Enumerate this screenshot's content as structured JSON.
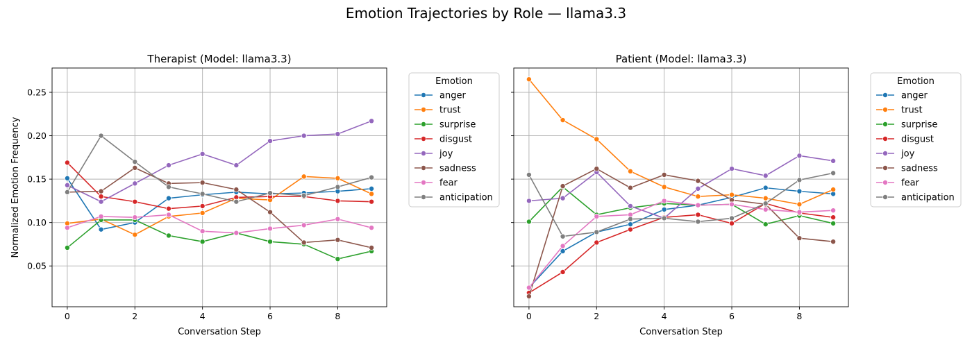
{
  "figure": {
    "title": "Emotion Trajectories by Role — llama3.3"
  },
  "colors": {
    "anger": "#1f77b4",
    "trust": "#ff7f0e",
    "surprise": "#2ca02c",
    "disgust": "#d62728",
    "joy": "#9467bd",
    "sadness": "#8c564b",
    "fear": "#e377c2",
    "anticipation": "#7f7f7f"
  },
  "chart_data": [
    {
      "type": "line",
      "title": "Therapist (Model: llama3.3)",
      "xlabel": "Conversation Step",
      "ylabel": "Normalized Emotion Frequency",
      "x": [
        0,
        1,
        2,
        3,
        4,
        5,
        6,
        7,
        8,
        9
      ],
      "xticks": [
        0,
        2,
        4,
        6,
        8
      ],
      "xlim": [
        -0.45,
        9.45
      ],
      "ylim": [
        0.003,
        0.278
      ],
      "yticks": [
        0.05,
        0.1,
        0.15,
        0.2,
        0.25
      ],
      "grid": true,
      "legend": {
        "title": "Emotion",
        "placement": "outside-right"
      },
      "series": [
        {
          "name": "anger",
          "values": [
            0.151,
            0.092,
            0.1,
            0.128,
            0.132,
            0.135,
            0.133,
            0.134,
            0.136,
            0.139
          ]
        },
        {
          "name": "trust",
          "values": [
            0.099,
            0.104,
            0.086,
            0.107,
            0.111,
            0.128,
            0.126,
            0.153,
            0.151,
            0.133
          ]
        },
        {
          "name": "surprise",
          "values": [
            0.071,
            0.103,
            0.103,
            0.085,
            0.078,
            0.088,
            0.078,
            0.075,
            0.058,
            0.067
          ]
        },
        {
          "name": "disgust",
          "values": [
            0.169,
            0.13,
            0.124,
            0.116,
            0.119,
            0.129,
            0.13,
            0.13,
            0.125,
            0.124
          ]
        },
        {
          "name": "joy",
          "values": [
            0.143,
            0.124,
            0.145,
            0.166,
            0.179,
            0.166,
            0.194,
            0.2,
            0.202,
            0.217
          ]
        },
        {
          "name": "sadness",
          "values": [
            0.135,
            0.136,
            0.163,
            0.145,
            0.146,
            0.138,
            0.112,
            0.077,
            0.08,
            0.071
          ]
        },
        {
          "name": "fear",
          "values": [
            0.094,
            0.107,
            0.106,
            0.109,
            0.09,
            0.088,
            0.093,
            0.097,
            0.104,
            0.094
          ]
        },
        {
          "name": "anticipation",
          "values": [
            0.135,
            0.2,
            0.17,
            0.141,
            0.133,
            0.124,
            0.134,
            0.131,
            0.141,
            0.152
          ]
        }
      ]
    },
    {
      "type": "line",
      "title": "Patient (Model: llama3.3)",
      "xlabel": "Conversation Step",
      "ylabel": "",
      "x": [
        0,
        1,
        2,
        3,
        4,
        5,
        6,
        7,
        8,
        9
      ],
      "xticks": [
        0,
        2,
        4,
        6,
        8
      ],
      "xlim": [
        -0.45,
        9.45
      ],
      "ylim": [
        0.003,
        0.278
      ],
      "yticks": [
        0.05,
        0.1,
        0.15,
        0.2,
        0.25
      ],
      "grid": true,
      "legend": {
        "title": "Emotion",
        "placement": "outside-right"
      },
      "series": [
        {
          "name": "anger",
          "values": [
            0.025,
            0.067,
            0.089,
            0.098,
            0.115,
            0.12,
            0.129,
            0.14,
            0.136,
            0.133
          ]
        },
        {
          "name": "trust",
          "values": [
            0.265,
            0.218,
            0.196,
            0.159,
            0.141,
            0.13,
            0.132,
            0.128,
            0.121,
            0.138
          ]
        },
        {
          "name": "surprise",
          "values": [
            0.101,
            0.141,
            0.109,
            0.117,
            0.122,
            0.12,
            0.121,
            0.098,
            0.108,
            0.099
          ]
        },
        {
          "name": "disgust",
          "values": [
            0.019,
            0.043,
            0.077,
            0.092,
            0.106,
            0.109,
            0.099,
            0.122,
            0.111,
            0.106
          ]
        },
        {
          "name": "joy",
          "values": [
            0.125,
            0.128,
            0.158,
            0.119,
            0.105,
            0.139,
            0.162,
            0.154,
            0.177,
            0.171
          ]
        },
        {
          "name": "sadness",
          "values": [
            0.015,
            0.142,
            0.162,
            0.14,
            0.155,
            0.148,
            0.126,
            0.121,
            0.082,
            0.078
          ]
        },
        {
          "name": "fear",
          "values": [
            0.025,
            0.073,
            0.107,
            0.109,
            0.125,
            0.12,
            0.121,
            0.115,
            0.112,
            0.114
          ]
        },
        {
          "name": "anticipation",
          "values": [
            0.155,
            0.084,
            0.089,
            0.104,
            0.105,
            0.101,
            0.105,
            0.122,
            0.149,
            0.157
          ]
        }
      ]
    }
  ]
}
